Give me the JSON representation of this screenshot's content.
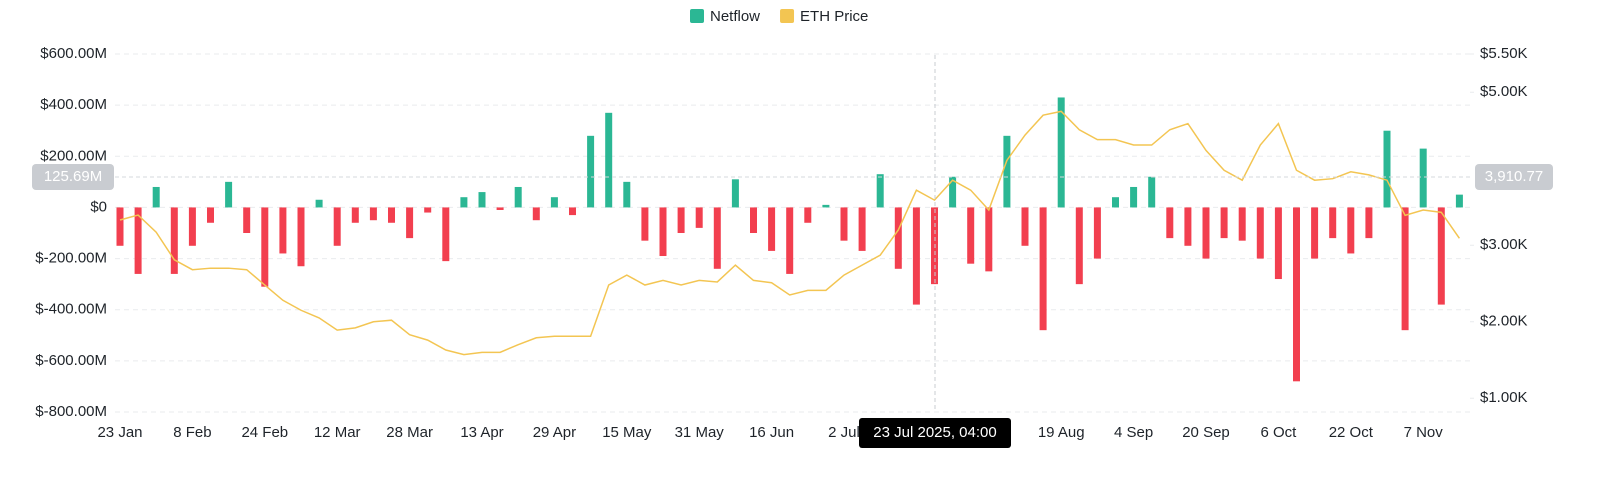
{
  "chart_data": {
    "type": "bar-line",
    "legend_position": "top",
    "grid": true,
    "categories": [
      "23 Jan",
      null,
      null,
      null,
      "8 Feb",
      null,
      null,
      null,
      "24 Feb",
      null,
      null,
      null,
      "12 Mar",
      null,
      null,
      null,
      "28 Mar",
      null,
      null,
      null,
      "13 Apr",
      null,
      null,
      null,
      "29 Apr",
      null,
      null,
      null,
      "15 May",
      null,
      null,
      null,
      "31 May",
      null,
      null,
      null,
      "16 Jun",
      null,
      null,
      null,
      "2 Jul",
      null,
      null,
      null,
      null,
      null,
      null,
      null,
      null,
      null,
      null,
      null,
      "19 Aug",
      null,
      null,
      null,
      "4 Sep",
      null,
      null,
      null,
      "20 Sep",
      null,
      null,
      null,
      "6 Oct",
      null,
      null,
      null,
      "22 Oct",
      null,
      null,
      null,
      "7 Nov",
      null,
      null
    ],
    "series": [
      {
        "name": "Netflow",
        "type": "bar",
        "color": "#2bb794",
        "negative_color": "#f23f4f",
        "values": [
          -150000000,
          -260000000,
          80000000,
          -260000000,
          -150000000,
          -60000000,
          100000000,
          -100000000,
          -310000000,
          -180000000,
          -230000000,
          30000000,
          -150000000,
          -60000000,
          -50000000,
          -60000000,
          -120000000,
          -20000000,
          -210000000,
          40000000,
          60000000,
          -10000000,
          80000000,
          -50000000,
          40000000,
          -30000000,
          280000000,
          370000000,
          100000000,
          -130000000,
          -190000000,
          -100000000,
          -80000000,
          -240000000,
          110000000,
          -100000000,
          -170000000,
          -260000000,
          -60000000,
          10000000,
          -130000000,
          -170000000,
          130000000,
          -240000000,
          -380000000,
          -300000000,
          120000000,
          -220000000,
          -250000000,
          280000000,
          -150000000,
          -480000000,
          430000000,
          -300000000,
          -200000000,
          40000000,
          80000000,
          120000000,
          -120000000,
          -150000000,
          -200000000,
          -120000000,
          -130000000,
          -200000000,
          -280000000,
          -680000000,
          -200000000,
          -120000000,
          -180000000,
          -120000000,
          300000000,
          -480000000,
          230000000,
          -380000000,
          50000000
        ]
      },
      {
        "name": "ETH Price",
        "type": "line",
        "axis": "y2",
        "color": "#f3c552",
        "values": [
          3330,
          3395,
          3170,
          2810,
          2680,
          2700,
          2700,
          2680,
          2480,
          2280,
          2150,
          2050,
          1890,
          1920,
          2000,
          2020,
          1830,
          1760,
          1630,
          1570,
          1600,
          1600,
          1700,
          1790,
          1810,
          1810,
          1810,
          2480,
          2610,
          2480,
          2540,
          2480,
          2540,
          2520,
          2740,
          2540,
          2510,
          2350,
          2410,
          2410,
          2610,
          2740,
          2870,
          3200,
          3720,
          3590,
          3850,
          3720,
          3460,
          4110,
          4440,
          4700,
          4750,
          4510,
          4380,
          4380,
          4310,
          4310,
          4510,
          4590,
          4240,
          3980,
          3850,
          4310,
          4590,
          3980,
          3850,
          3870,
          3960,
          3920,
          3850,
          3390,
          3460,
          3430,
          3090
        ]
      }
    ],
    "ylim": [
      -800000000,
      600000000
    ],
    "yticks": [
      {
        "value": -800000000,
        "label": "$-800.00M"
      },
      {
        "value": -600000000,
        "label": "$-600.00M"
      },
      {
        "value": -400000000,
        "label": "$-400.00M"
      },
      {
        "value": -200000000,
        "label": "$-200.00M"
      },
      {
        "value": 0,
        "label": "$0"
      },
      {
        "value": 200000000,
        "label": "$200.00M"
      },
      {
        "value": 400000000,
        "label": "$400.00M"
      },
      {
        "value": 600000000,
        "label": "$600.00M"
      }
    ],
    "y2lim": [
      820,
      5500
    ],
    "y2ticks": [
      {
        "value": 1000,
        "label": "$1.00K"
      },
      {
        "value": 2000,
        "label": "$2.00K"
      },
      {
        "value": 3000,
        "label": "$3.00K"
      },
      {
        "value": 5000,
        "label": "$5.00K"
      },
      {
        "value": 5500,
        "label": "$5.50K"
      }
    ],
    "crosshair": {
      "x_label": "23 Jul 2025, 04:00",
      "y_label": "125.69M",
      "y2_label": "3,910.77"
    }
  }
}
